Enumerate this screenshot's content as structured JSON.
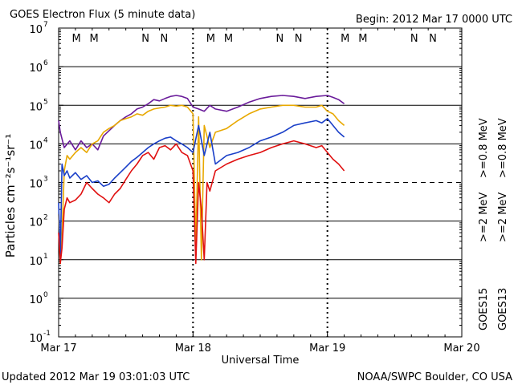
{
  "title": "GOES Electron Flux (5 minute data)",
  "begin": "Begin: 2012 Mar 17 0000 UTC",
  "footer": {
    "updated": "Updated 2012 Mar 19 03:01:03 UTC",
    "credit": "NOAA/SWPC Boulder, CO USA"
  },
  "colors": {
    "purple": "#6a1b9a",
    "gold": "#e8a800",
    "blue": "#1a3fc8",
    "red": "#e01010",
    "marker_m": "#c81818",
    "marker_n_red": "#c81818",
    "marker_n_blue": "#1a3fc8"
  },
  "chart_data": {
    "type": "line",
    "title": "GOES Electron Flux (5 minute data)",
    "xlabel": "Universal Time",
    "ylabel": "Particles cm⁻²s⁻¹sr⁻¹",
    "y_scale": "log",
    "ylim": [
      0.1,
      10000000
    ],
    "y_ticks": [
      {
        "value": 0.1,
        "base": "10",
        "exp": "-1"
      },
      {
        "value": 1,
        "base": "10",
        "exp": "0"
      },
      {
        "value": 10,
        "base": "10",
        "exp": "1"
      },
      {
        "value": 100,
        "base": "10",
        "exp": "2"
      },
      {
        "value": 1000,
        "base": "10",
        "exp": "3"
      },
      {
        "value": 10000,
        "base": "10",
        "exp": "4"
      },
      {
        "value": 100000,
        "base": "10",
        "exp": "5"
      },
      {
        "value": 1000000,
        "base": "10",
        "exp": "6"
      },
      {
        "value": 10000000,
        "base": "10",
        "exp": "7"
      }
    ],
    "xlim": [
      "2012-03-17T00:00",
      "2012-03-20T00:00"
    ],
    "x_ticks": [
      "Mar 17",
      "Mar 18",
      "Mar 19",
      "Mar 20"
    ],
    "x_tick_values": [
      "2012-03-17T00:00",
      "2012-03-18T00:00",
      "2012-03-19T00:00",
      "2012-03-20T00:00"
    ],
    "threshold_line": {
      "value": 1000,
      "style": "dashed"
    },
    "grid": true,
    "markers": [
      {
        "label": "M",
        "x": "2012-03-17T03:10",
        "color": "red"
      },
      {
        "label": "M",
        "x": "2012-03-17T06:20",
        "color": "blue"
      },
      {
        "label": "N",
        "x": "2012-03-17T15:30",
        "color": "red"
      },
      {
        "label": "N",
        "x": "2012-03-17T18:50",
        "color": "blue"
      },
      {
        "label": "M",
        "x": "2012-03-18T03:10",
        "color": "red"
      },
      {
        "label": "M",
        "x": "2012-03-18T06:20",
        "color": "blue"
      },
      {
        "label": "N",
        "x": "2012-03-18T15:30",
        "color": "red"
      },
      {
        "label": "N",
        "x": "2012-03-18T18:50",
        "color": "blue"
      },
      {
        "label": "M",
        "x": "2012-03-19T03:10",
        "color": "red"
      },
      {
        "label": "M",
        "x": "2012-03-19T06:20",
        "color": "blue"
      },
      {
        "label": "N",
        "x": "2012-03-19T15:30",
        "color": "red"
      },
      {
        "label": "N",
        "x": "2012-03-19T18:50",
        "color": "blue"
      }
    ],
    "legend": [
      {
        "satellite": "GOES15",
        "sat_color": "#000000",
        "entries": [
          {
            "text": ">=0.8 MeV",
            "color": "#6a1b9a"
          },
          {
            "text": ">=2 MeV",
            "color": "#1a3fc8"
          }
        ]
      },
      {
        "satellite": "GOES13",
        "sat_color": "#000000",
        "entries": [
          {
            "text": ">=0.8 MeV",
            "color": "#e8a800"
          },
          {
            "text": ">=2 MeV",
            "color": "#e01010"
          }
        ]
      }
    ],
    "series": [
      {
        "name": "GOES15 >=0.8 MeV",
        "color": "#6a1b9a",
        "x_hours": [
          0,
          0.3,
          1,
          2,
          3,
          4,
          5,
          6,
          7,
          8,
          9,
          10,
          11,
          12,
          13,
          14,
          15,
          16,
          17,
          18,
          19,
          20,
          21,
          22,
          23,
          24,
          25,
          26,
          27,
          28,
          30,
          32,
          34,
          36,
          38,
          40,
          42,
          44,
          46,
          48,
          49,
          50,
          51
        ],
        "y": [
          40000,
          20000,
          8000,
          12000,
          7000,
          12000,
          8000,
          10000,
          7000,
          16000,
          22000,
          30000,
          40000,
          50000,
          60000,
          80000,
          90000,
          110000,
          140000,
          130000,
          150000,
          170000,
          180000,
          170000,
          150000,
          90000,
          80000,
          70000,
          100000,
          80000,
          70000,
          90000,
          120000,
          150000,
          170000,
          180000,
          170000,
          150000,
          170000,
          180000,
          160000,
          140000,
          110000
        ]
      },
      {
        "name": "GOES13 >=0.8 MeV",
        "color": "#e8a800",
        "x_hours": [
          0,
          0.3,
          0.6,
          1,
          1.5,
          2,
          3,
          4,
          5,
          6,
          7,
          8,
          9,
          10,
          11,
          12,
          13,
          14,
          15,
          16,
          17,
          18,
          19,
          20,
          21,
          22,
          23,
          24,
          24.5,
          25,
          25.5,
          26,
          27,
          28,
          30,
          32,
          34,
          36,
          38,
          40,
          42,
          44,
          46,
          47,
          48,
          49,
          50,
          51
        ],
        "y": [
          150,
          8,
          40,
          2000,
          5000,
          4000,
          6000,
          8000,
          6000,
          10000,
          12000,
          20000,
          25000,
          30000,
          40000,
          45000,
          50000,
          60000,
          55000,
          70000,
          80000,
          85000,
          90000,
          100000,
          95000,
          100000,
          90000,
          60000,
          20,
          50000,
          10,
          30000,
          8000,
          20000,
          25000,
          40000,
          60000,
          80000,
          90000,
          100000,
          100000,
          90000,
          90000,
          100000,
          70000,
          60000,
          40000,
          30000
        ]
      },
      {
        "name": "GOES15 >=2 MeV",
        "color": "#1a3fc8",
        "x_hours": [
          0,
          0.3,
          0.6,
          1,
          1.5,
          2,
          3,
          4,
          5,
          6,
          7,
          8,
          9,
          10,
          11,
          12,
          13,
          14,
          15,
          16,
          17,
          18,
          19,
          20,
          21,
          22,
          23,
          24,
          25,
          26,
          27,
          28,
          30,
          32,
          34,
          36,
          38,
          40,
          42,
          44,
          46,
          47,
          48,
          49,
          50,
          51
        ],
        "y": [
          300,
          10,
          3000,
          1500,
          2000,
          1300,
          1800,
          1200,
          1500,
          1000,
          1100,
          800,
          900,
          1300,
          1800,
          2500,
          3500,
          4500,
          6000,
          8000,
          10000,
          12000,
          14000,
          15000,
          12000,
          10000,
          8000,
          6000,
          30000,
          5000,
          20000,
          3000,
          5000,
          6000,
          8000,
          12000,
          15000,
          20000,
          30000,
          35000,
          40000,
          35000,
          45000,
          30000,
          20000,
          15000
        ]
      },
      {
        "name": "GOES13 >=2 MeV",
        "color": "#e01010",
        "x_hours": [
          0,
          0.3,
          0.6,
          1,
          1.5,
          2,
          3,
          4,
          5,
          6,
          7,
          8,
          9,
          10,
          11,
          12,
          13,
          14,
          15,
          16,
          17,
          18,
          19,
          20,
          21,
          22,
          23,
          24,
          24.5,
          25,
          25.5,
          26,
          26.5,
          27,
          28,
          30,
          32,
          34,
          36,
          38,
          40,
          42,
          44,
          46,
          47,
          48,
          49,
          50,
          51
        ],
        "y": [
          50,
          8,
          20,
          200,
          400,
          300,
          350,
          500,
          1000,
          700,
          500,
          400,
          300,
          500,
          700,
          1200,
          2000,
          3000,
          5000,
          6000,
          4000,
          8000,
          9000,
          7000,
          10000,
          6000,
          5000,
          2000,
          8,
          1000,
          200,
          10,
          1000,
          600,
          2000,
          3000,
          4000,
          5000,
          6000,
          8000,
          10000,
          12000,
          10000,
          8000,
          9000,
          6000,
          4000,
          3000,
          2000
        ]
      }
    ]
  }
}
